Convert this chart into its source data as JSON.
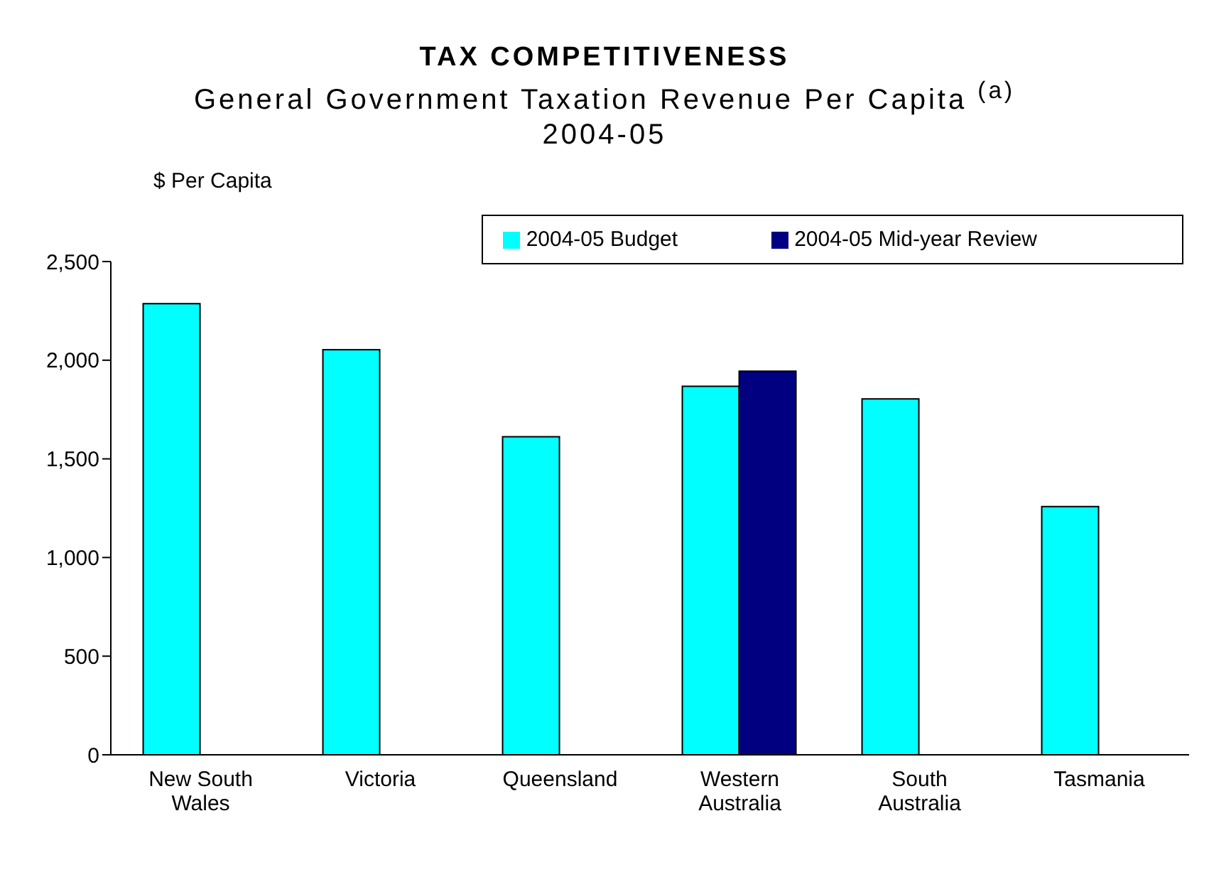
{
  "chart_data": {
    "type": "bar",
    "title": "TAX COMPETITIVENESS",
    "subtitle": "General Government Taxation Revenue Per Capita $^{(a)}$\n2004-05",
    "ylabel": "$ Per Capita",
    "categories": [
      "New South Wales",
      "Victoria",
      "Queensland",
      "Western Australia",
      "South Australia",
      "Tasmania"
    ],
    "series": [
      {
        "name": "2004-05 Budget",
        "color": "#00ffff",
        "values": [
          2287,
          2053,
          1612,
          1868,
          1804,
          1258
        ]
      },
      {
        "name": "2004-05 Mid-year Review",
        "color": "#000080",
        "values": [
          null,
          null,
          null,
          1944,
          null,
          null
        ]
      }
    ],
    "ylim": [
      0,
      2500
    ],
    "yticks": [
      0,
      500,
      {
        "value": 1000,
        "label": "1,000"
      },
      {
        "value": 1500,
        "label": "1,500"
      },
      {
        "value": 2000,
        "label": "2,000"
      },
      {
        "value": 2500,
        "label": "2,500"
      }
    ],
    "grid": false,
    "legend": "top right"
  }
}
